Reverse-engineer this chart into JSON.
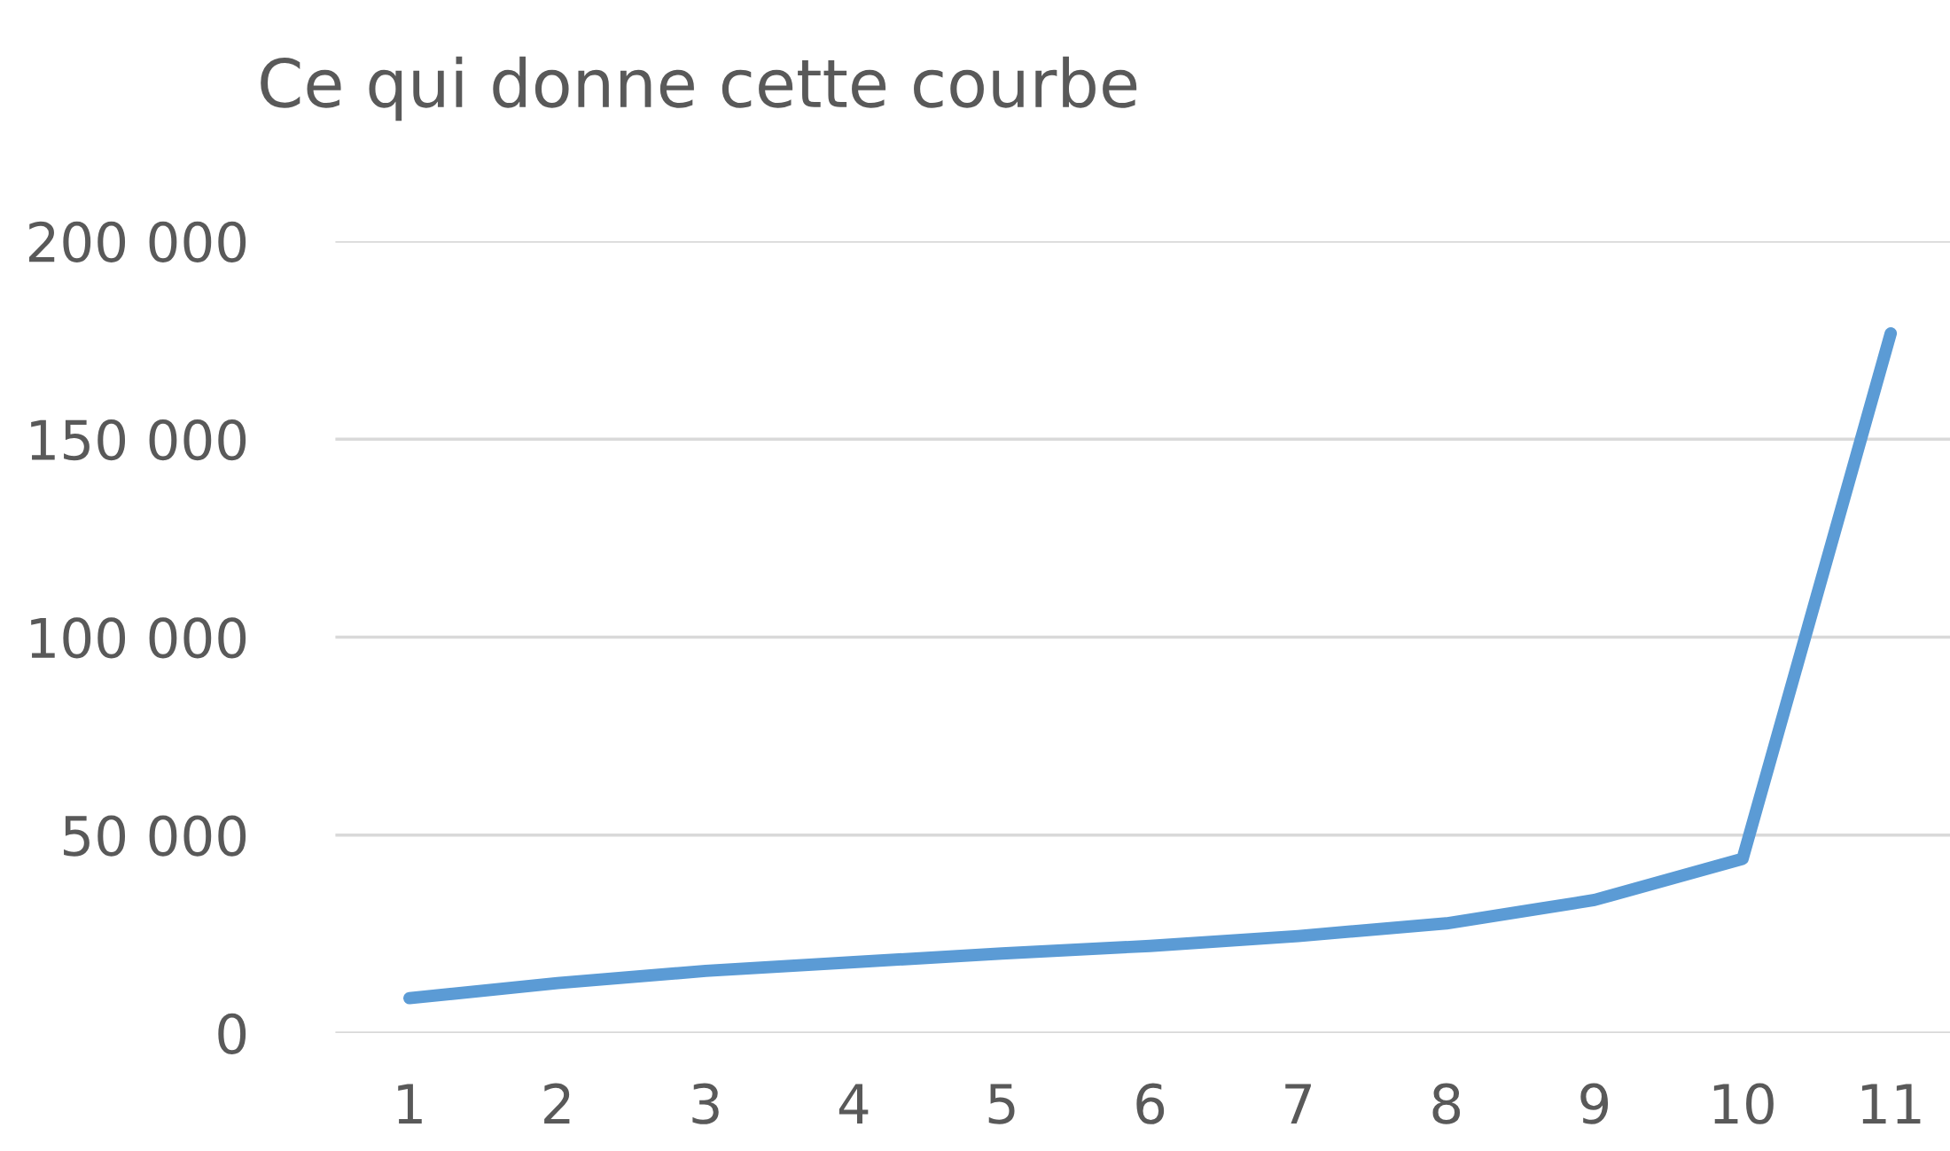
{
  "chart_data": {
    "type": "line",
    "title": "Ce qui donne cette courbe",
    "categories": [
      "1",
      "2",
      "3",
      "4",
      "5",
      "6",
      "7",
      "8",
      "9",
      "10",
      "11"
    ],
    "series": [
      {
        "color": "#5b9bd5",
        "values": [
          8800,
          12600,
          15700,
          17900,
          20100,
          22000,
          24500,
          27700,
          33600,
          44000,
          176700
        ]
      }
    ],
    "ylim": [
      0,
      200000
    ],
    "yticks": [
      {
        "value": 0,
        "label": "0"
      },
      {
        "value": 50000,
        "label": "50 000"
      },
      {
        "value": 100000,
        "label": "100 000"
      },
      {
        "value": 150000,
        "label": "150 000"
      },
      {
        "value": 200000,
        "label": "200 000"
      }
    ],
    "grid": "y",
    "marker": "none",
    "line_style": "solid"
  }
}
